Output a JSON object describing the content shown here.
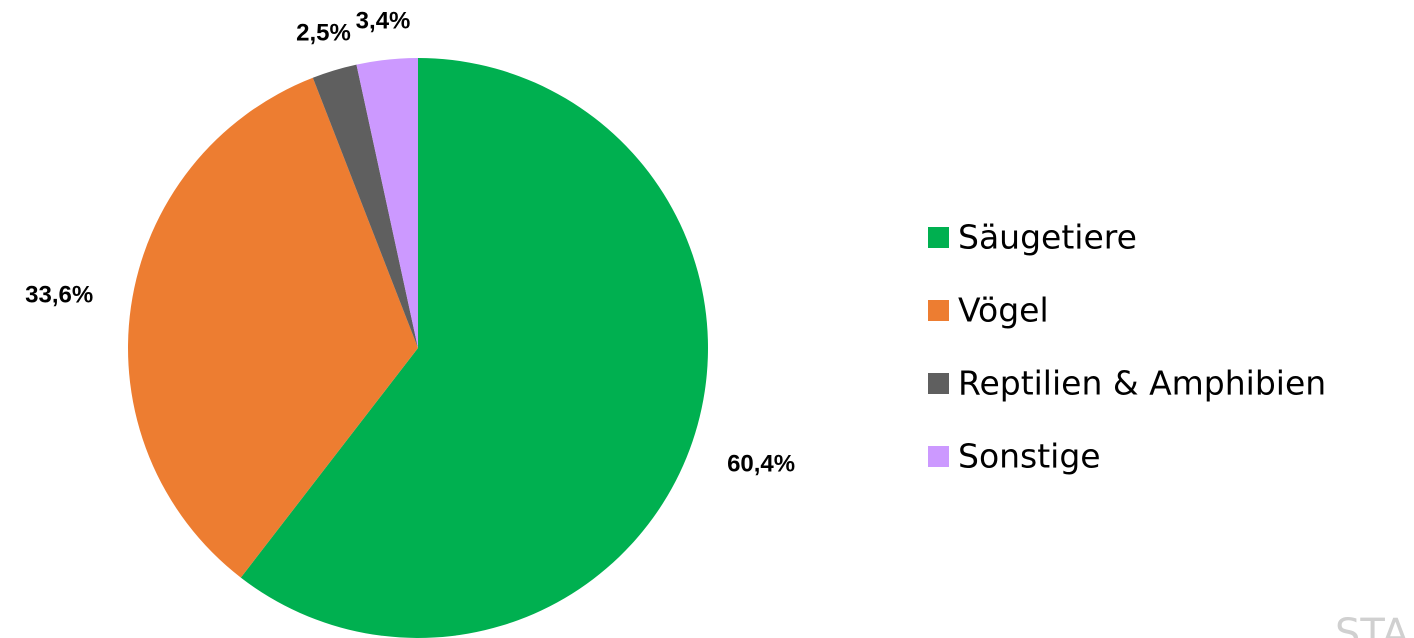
{
  "chart_data": {
    "type": "pie",
    "categories": [
      "Säugetiere",
      "Vögel",
      "Reptilien & Amphibien",
      "Sonstige"
    ],
    "values": [
      60.4,
      33.6,
      2.5,
      3.4
    ],
    "value_labels": [
      "60,4%",
      "33,6%",
      "2,5%",
      "3,4%"
    ],
    "colors": [
      "#00b050",
      "#ed7d31",
      "#5f5f5f",
      "#cc99ff"
    ],
    "legend": "right",
    "watermark": "STA"
  }
}
